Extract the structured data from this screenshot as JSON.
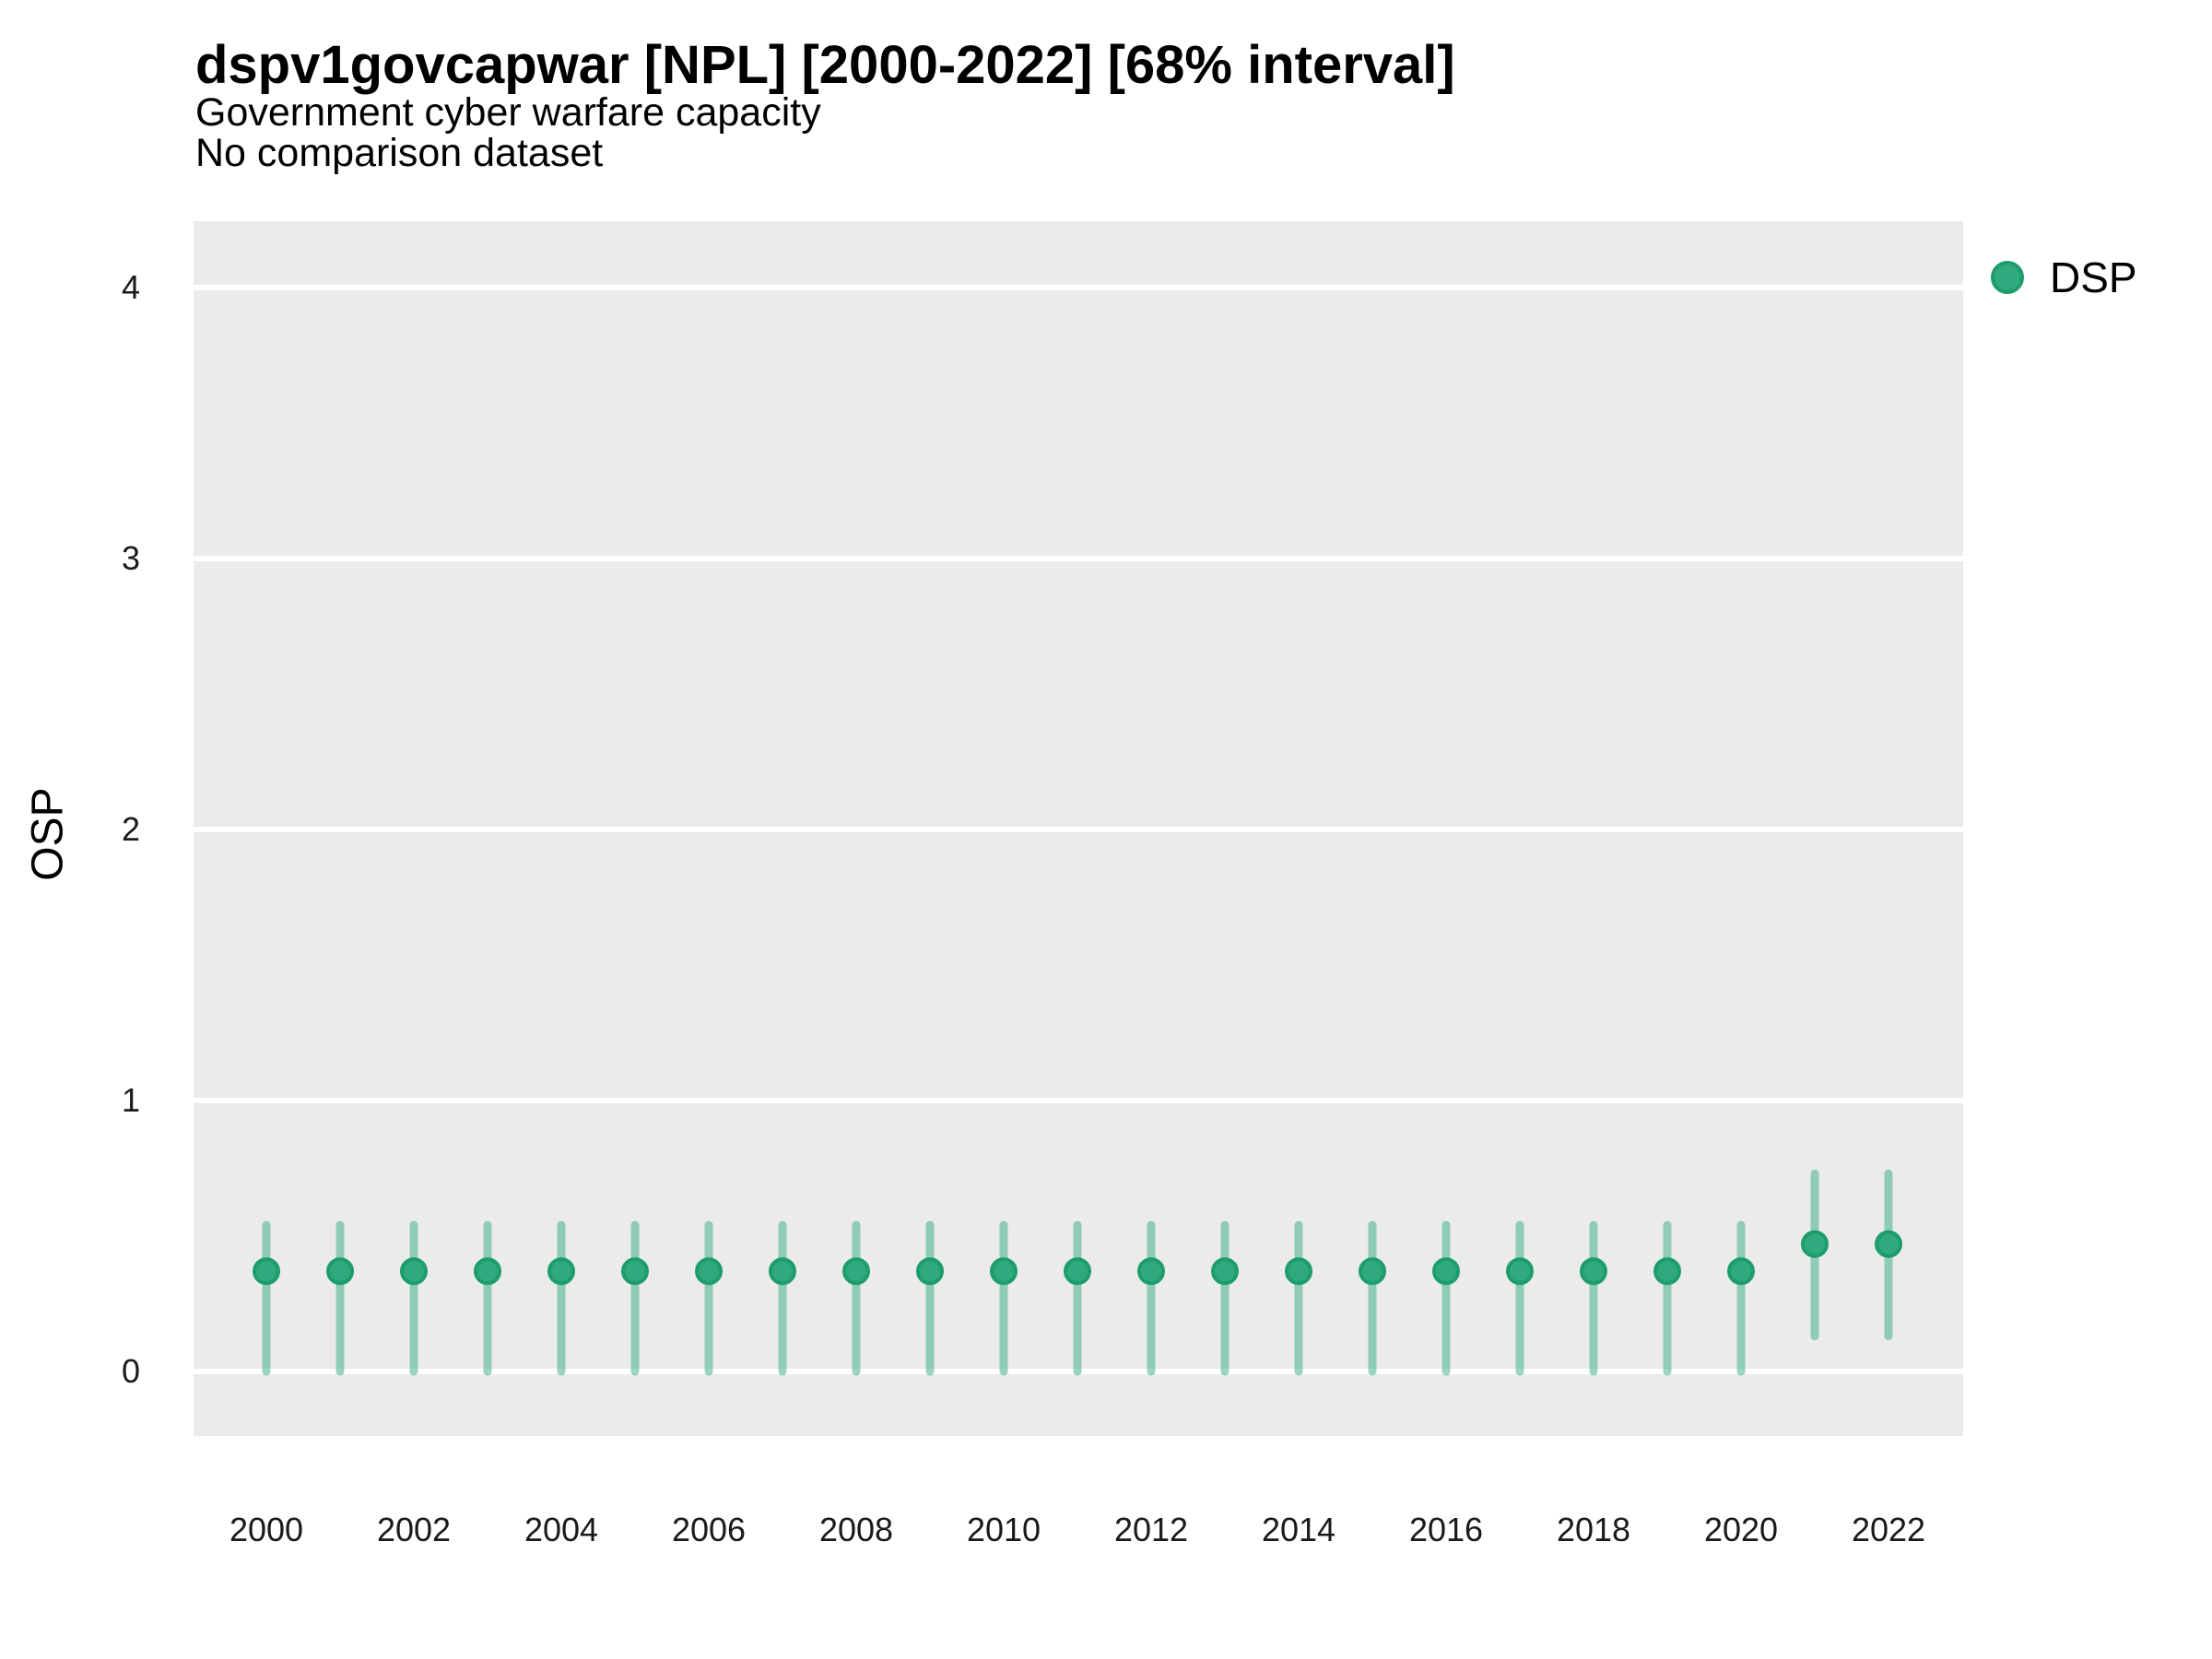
{
  "header": {
    "title": "dspv1govcapwar [NPL] [2000-2022] [68% interval]",
    "subtitle": "Government cyber warfare capacity",
    "note": "No comparison dataset"
  },
  "legend": {
    "items": [
      {
        "label": "DSP",
        "color": "#2fa97d"
      }
    ]
  },
  "colors": {
    "point_fill": "#2fa97d",
    "point_stroke": "#1d9d6c",
    "interval_bar": "rgba(42,168,124,0.48)",
    "panel_bg": "#ebebeb",
    "gridline": "#ffffff",
    "tick_text": "#1a1a1a"
  },
  "chart_data": {
    "type": "scatter",
    "title": "dspv1govcapwar [NPL] [2000-2022] [68% interval]",
    "subtitle": "Government cyber warfare capacity",
    "note": "No comparison dataset",
    "xlabel": "",
    "ylabel": "OSP",
    "interval_level": "68%",
    "xlim": [
      1999,
      2023
    ],
    "ylim": [
      -0.24,
      4.25
    ],
    "x_ticks": [
      2000,
      2002,
      2004,
      2006,
      2008,
      2010,
      2012,
      2014,
      2016,
      2018,
      2020,
      2022
    ],
    "y_ticks": [
      0,
      1,
      2,
      3,
      4
    ],
    "grid": "horizontal-major-only",
    "legend_position": "right-top",
    "series": [
      {
        "name": "DSP",
        "x": [
          2000,
          2001,
          2002,
          2003,
          2004,
          2005,
          2006,
          2007,
          2008,
          2009,
          2010,
          2011,
          2012,
          2013,
          2014,
          2015,
          2016,
          2017,
          2018,
          2019,
          2020,
          2021,
          2022
        ],
        "est": [
          0.37,
          0.37,
          0.37,
          0.37,
          0.37,
          0.37,
          0.37,
          0.37,
          0.37,
          0.37,
          0.37,
          0.37,
          0.37,
          0.37,
          0.37,
          0.37,
          0.37,
          0.37,
          0.37,
          0.37,
          0.37,
          0.47,
          0.47
        ],
        "low": [
          0.0,
          0.0,
          0.0,
          0.0,
          0.0,
          0.0,
          0.0,
          0.0,
          0.0,
          0.0,
          0.0,
          0.0,
          0.0,
          0.0,
          0.0,
          0.0,
          0.0,
          0.0,
          0.0,
          0.0,
          0.0,
          0.13,
          0.13
        ],
        "high": [
          0.54,
          0.54,
          0.54,
          0.54,
          0.54,
          0.54,
          0.54,
          0.54,
          0.54,
          0.54,
          0.54,
          0.54,
          0.54,
          0.54,
          0.54,
          0.54,
          0.54,
          0.54,
          0.54,
          0.54,
          0.54,
          0.73,
          0.73
        ]
      }
    ]
  }
}
